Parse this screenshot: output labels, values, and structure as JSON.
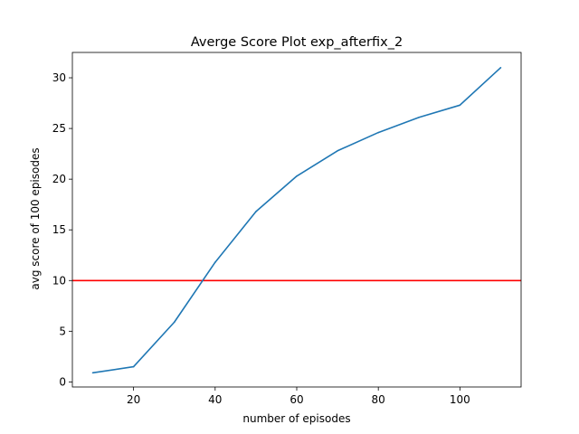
{
  "chart_data": {
    "type": "line",
    "title": "Averge Score Plot exp_afterfix_2",
    "xlabel": "number of episodes",
    "ylabel": "avg score of 100 episodes",
    "xlim": [
      5,
      115
    ],
    "ylim": [
      -0.5,
      32.5
    ],
    "xticks": [
      20,
      40,
      60,
      80,
      100
    ],
    "yticks": [
      0,
      5,
      10,
      15,
      20,
      25,
      30
    ],
    "grid": false,
    "series": [
      {
        "x": [
          10,
          20,
          30,
          40,
          50,
          60,
          70,
          80,
          90,
          100,
          110
        ],
        "values": [
          0.9,
          1.5,
          5.9,
          11.8,
          16.8,
          20.3,
          22.8,
          24.6,
          26.1,
          27.3,
          31.0
        ],
        "color": "#1f77b4"
      }
    ],
    "reference_lines": [
      {
        "orientation": "horizontal",
        "y": 10,
        "color": "#ff0000"
      }
    ]
  }
}
